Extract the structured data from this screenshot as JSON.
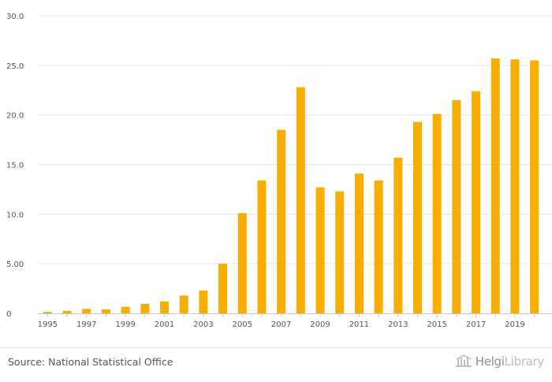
{
  "chart_data": {
    "type": "bar",
    "title": "",
    "xlabel": "",
    "ylabel": "",
    "categories": [
      "1995",
      "1996",
      "1997",
      "1998",
      "1999",
      "2000",
      "2001",
      "2002",
      "2003",
      "2004",
      "2005",
      "2006",
      "2007",
      "2008",
      "2009",
      "2010",
      "2011",
      "2012",
      "2013",
      "2014",
      "2015",
      "2016",
      "2017",
      "2018",
      "2019",
      "2020"
    ],
    "values": [
      0.15,
      0.25,
      0.45,
      0.4,
      0.65,
      0.95,
      1.2,
      1.8,
      2.3,
      5.0,
      10.1,
      13.4,
      18.5,
      22.8,
      12.7,
      12.3,
      14.1,
      13.4,
      15.7,
      19.3,
      20.1,
      21.5,
      22.4,
      25.7,
      25.6,
      25.5
    ],
    "ylim": [
      0,
      30
    ],
    "yticks": [
      "0",
      "5.00",
      "10.0",
      "15.0",
      "20.0",
      "25.0",
      "30.0"
    ],
    "xtick_labels": [
      "1995",
      "1997",
      "1999",
      "2001",
      "2003",
      "2005",
      "2007",
      "2009",
      "2011",
      "2013",
      "2015",
      "2017",
      "2019"
    ],
    "grid": true,
    "colors": {
      "bar": "#F7AE00",
      "grid": "#e6e6e6",
      "axis": "#c8c8c8"
    }
  },
  "footer": {
    "source": "Source: National Statistical Office",
    "brand_part1": "Helgi",
    "brand_part2": "Library"
  }
}
